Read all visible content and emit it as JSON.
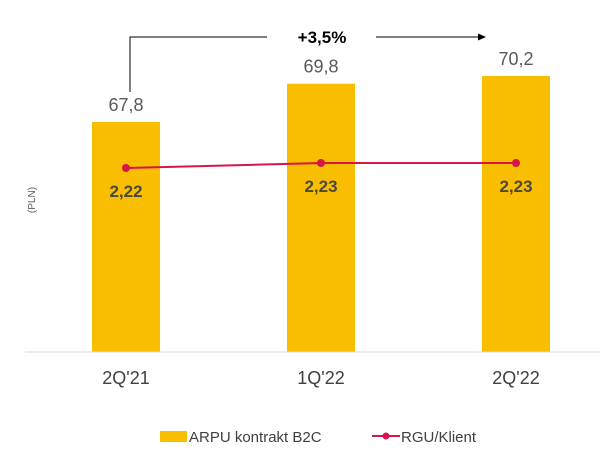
{
  "chart_data": {
    "type": "bar",
    "categories": [
      "2Q'21",
      "1Q'22",
      "2Q'22"
    ],
    "series": [
      {
        "name": "ARPU kontrakt B2C",
        "kind": "bar",
        "color": "#F9BE00",
        "values": [
          67.8,
          69.8,
          70.2
        ],
        "labels": [
          "67,8",
          "69,8",
          "70,2"
        ]
      },
      {
        "name": "RGU/Klient",
        "kind": "line",
        "color": "#D6154A",
        "values": [
          2.22,
          2.23,
          2.23
        ],
        "labels": [
          "2,22",
          "2,23",
          "2,23"
        ]
      }
    ],
    "ylabel": "(PLN)",
    "xlabel": "",
    "annotation": "+3,5%",
    "legend_position": "bottom",
    "grid": false
  }
}
